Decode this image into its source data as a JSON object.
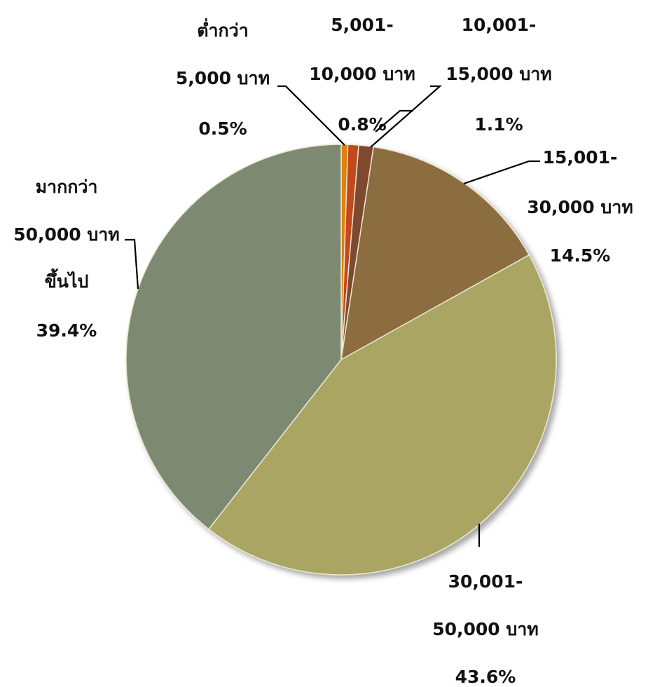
{
  "chart_data": {
    "type": "pie",
    "title": "",
    "unit": "%",
    "slices": [
      {
        "lines": [
          "ต่ำกว่า",
          "5,000 บาท",
          "0.5%"
        ],
        "value": 0.5,
        "color": "#E1810F"
      },
      {
        "lines": [
          "5,001-",
          "10,000 บาท",
          "0.8%"
        ],
        "value": 0.8,
        "color": "#C2481A"
      },
      {
        "lines": [
          "10,001-",
          "15,000 บาท",
          "1.1%"
        ],
        "value": 1.1,
        "color": "#7E4A2E"
      },
      {
        "lines": [
          "15,001-",
          "30,000 บาท",
          "14.5%"
        ],
        "value": 14.5,
        "color": "#8C6D40"
      },
      {
        "lines": [
          "30,001-",
          "50,000 บาท",
          "43.6%"
        ],
        "value": 43.6,
        "color": "#AAA564"
      },
      {
        "lines": [
          "มากกว่า",
          "50,000 บาท",
          "ขึ้นไป",
          "39.4%"
        ],
        "value": 39.4,
        "color": "#7D8A71"
      }
    ]
  }
}
